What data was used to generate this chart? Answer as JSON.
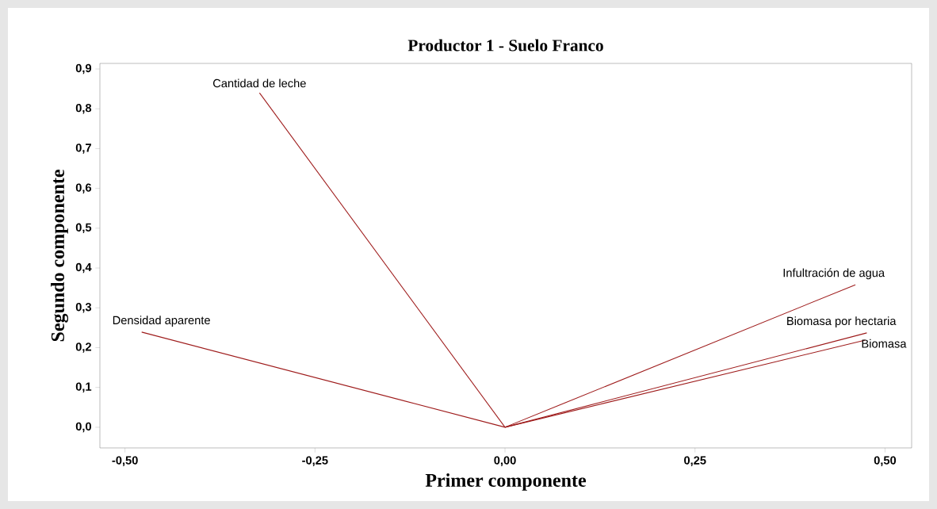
{
  "chart_data": {
    "type": "line",
    "title": "Productor 1 - Suelo Franco",
    "xlabel": "Primer componente",
    "ylabel": "Segundo componente",
    "xlim": [
      -0.533,
      0.535
    ],
    "ylim": [
      -0.052,
      0.914
    ],
    "xticks": [
      {
        "value": -0.5,
        "label": "-0,50"
      },
      {
        "value": -0.25,
        "label": "-0,25"
      },
      {
        "value": 0,
        "label": "0,00"
      },
      {
        "value": 0.25,
        "label": "0,25"
      },
      {
        "value": 0.5,
        "label": "0,50"
      }
    ],
    "yticks": [
      {
        "value": 0,
        "label": "0,0"
      },
      {
        "value": 0.1,
        "label": "0,1"
      },
      {
        "value": 0.2,
        "label": "0,2"
      },
      {
        "value": 0.3,
        "label": "0,3"
      },
      {
        "value": 0.4,
        "label": "0,4"
      },
      {
        "value": 0.5,
        "label": "0,5"
      },
      {
        "value": 0.6,
        "label": "0,6"
      },
      {
        "value": 0.7,
        "label": "0,7"
      },
      {
        "value": 0.8,
        "label": "0,8"
      },
      {
        "value": 0.9,
        "label": "0,9"
      }
    ],
    "grid": false,
    "marker": "none",
    "line_style": "solid",
    "series": [
      {
        "name": "Cantidad de leche",
        "color": "#9e1b1b",
        "x": [
          0,
          -0.323
        ],
        "values": [
          0,
          0.84
        ]
      },
      {
        "name": "Densidad aparente",
        "color": "#9e1b1b",
        "x": [
          0,
          -0.478
        ],
        "values": [
          0,
          0.239
        ]
      },
      {
        "name": "Infultración de agua",
        "color": "#9e1b1b",
        "x": [
          0,
          0.461
        ],
        "values": [
          0,
          0.358
        ]
      },
      {
        "name": "Biomasa por hectaria",
        "color": "#9e1b1b",
        "x": [
          0,
          0.476
        ],
        "values": [
          0,
          0.237
        ]
      },
      {
        "name": "Biomasa",
        "color": "#9e1b1b",
        "x": [
          0,
          0.474
        ],
        "values": [
          0,
          0.219
        ]
      }
    ]
  }
}
